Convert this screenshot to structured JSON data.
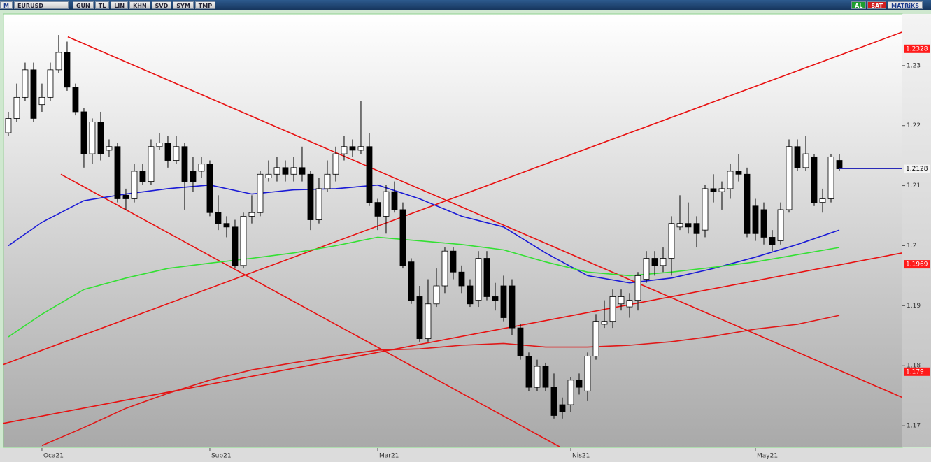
{
  "toolbar": {
    "logo": "M",
    "symbol": "EURUSD",
    "buttons": [
      "GUN",
      "TL",
      "LIN",
      "KHN",
      "SVD",
      "SYM",
      "TMP"
    ],
    "right": [
      "AL",
      "SAT",
      "MATRiKS"
    ]
  },
  "chart_data": {
    "type": "candlestick",
    "xlim": [
      -0.58,
      106.5
    ],
    "ylim": [
      1.1664,
      1.2386
    ],
    "yticks": [
      1.17,
      1.18,
      1.19,
      1.2,
      1.21,
      1.22,
      1.23
    ],
    "xticks": [
      {
        "value": 4,
        "label": "Oca21"
      },
      {
        "value": 24,
        "label": "Sub21"
      },
      {
        "value": 44,
        "label": "Mar21"
      },
      {
        "value": 67,
        "label": "Nis21"
      },
      {
        "value": 89,
        "label": "May21"
      }
    ],
    "up_color": "#ffffff",
    "down_color": "#000000",
    "open": [
      1.2188,
      1.2212,
      1.2247,
      1.2293,
      1.2235,
      1.2247,
      1.2293,
      1.2322,
      1.2264,
      1.2223,
      1.2153,
      1.2206,
      1.2159,
      1.2165,
      1.2084,
      1.2078,
      1.2124,
      1.2107,
      1.2165,
      1.2171,
      1.2142,
      1.2165,
      1.2124,
      1.2124,
      1.2136,
      1.2055,
      1.2037,
      1.2031,
      1.1967,
      1.2049,
      1.2055,
      1.2113,
      1.2119,
      1.213,
      1.2119,
      1.213,
      1.2119,
      1.2043,
      1.2095,
      1.2119,
      1.2153,
      1.2165,
      1.2159,
      1.2165,
      1.2072,
      1.2049,
      1.209,
      1.206,
      1.1973,
      1.1915,
      1.1845,
      1.1903,
      1.1933,
      1.1991,
      1.1956,
      1.1933,
      1.1909,
      1.1979,
      1.1915,
      1.1933,
      1.1933,
      1.1863,
      1.1816,
      1.1764,
      1.1799,
      1.1764,
      1.1735,
      1.1735,
      1.1776,
      1.1758,
      1.1816,
      1.1869,
      1.1874,
      1.1903,
      1.1898,
      1.1909,
      1.1944,
      1.1979,
      1.1967,
      1.1979,
      1.2031,
      1.2037,
      1.2037,
      1.2026,
      1.2095,
      1.209,
      1.2095,
      1.2124,
      1.2119,
      1.2066,
      1.206,
      1.2014,
      1.2008,
      1.206,
      1.2165,
      1.213,
      1.2148,
      1.2072,
      1.2078,
      1.2142
    ],
    "high": [
      1.2223,
      1.227,
      1.2305,
      1.2305,
      1.227,
      1.2305,
      1.2351,
      1.234,
      1.227,
      1.2229,
      1.2212,
      1.2223,
      1.2177,
      1.2171,
      1.2095,
      1.2136,
      1.2136,
      1.2177,
      1.2188,
      1.2183,
      1.2183,
      1.2171,
      1.2148,
      1.2148,
      1.2142,
      1.2084,
      1.2049,
      1.2043,
      1.2055,
      1.2084,
      1.2124,
      1.2142,
      1.2148,
      1.2142,
      1.2148,
      1.2165,
      1.2124,
      1.2113,
      1.2142,
      1.2165,
      1.2183,
      1.2177,
      1.2241,
      1.2188,
      1.2078,
      1.2101,
      1.2107,
      1.2072,
      1.1979,
      1.1933,
      1.1944,
      1.1962,
      1.1997,
      1.1997,
      1.1967,
      1.1944,
      1.1991,
      1.1991,
      1.1938,
      1.195,
      1.1944,
      1.1869,
      1.1822,
      1.181,
      1.1805,
      1.1787,
      1.1747,
      1.1781,
      1.1787,
      1.1822,
      1.1886,
      1.1909,
      1.1927,
      1.1927,
      1.1921,
      1.1956,
      1.1991,
      1.1991,
      1.1997,
      1.2049,
      1.2084,
      1.2072,
      1.2049,
      1.2101,
      1.2119,
      1.2107,
      1.2136,
      1.2153,
      1.213,
      1.2078,
      1.2072,
      1.2026,
      1.2072,
      1.2177,
      1.2177,
      1.2183,
      1.2153,
      1.2095,
      1.2153,
      1.2153
    ],
    "low": [
      1.2183,
      1.2206,
      1.2241,
      1.2206,
      1.2223,
      1.2241,
      1.2287,
      1.2258,
      1.2217,
      1.213,
      1.2136,
      1.2142,
      1.2148,
      1.2072,
      1.206,
      1.2072,
      1.2101,
      1.2101,
      1.2159,
      1.213,
      1.2136,
      1.206,
      1.209,
      1.2113,
      1.2049,
      1.2026,
      1.2014,
      1.1962,
      1.1962,
      1.2037,
      1.2049,
      1.2107,
      1.2107,
      1.2107,
      1.2107,
      1.2107,
      1.2026,
      1.2037,
      1.209,
      1.2107,
      1.2142,
      1.2148,
      1.2153,
      1.2066,
      1.2026,
      1.202,
      1.2055,
      1.1962,
      1.1903,
      1.184,
      1.184,
      1.1898,
      1.1921,
      1.1944,
      1.1921,
      1.1898,
      1.1898,
      1.1909,
      1.1892,
      1.1874,
      1.1851,
      1.181,
      1.1758,
      1.1758,
      1.1758,
      1.1712,
      1.1712,
      1.1723,
      1.1752,
      1.1741,
      1.181,
      1.1863,
      1.1863,
      1.1892,
      1.188,
      1.1892,
      1.1938,
      1.195,
      1.1956,
      1.195,
      1.2026,
      1.202,
      1.1997,
      1.2014,
      1.2072,
      1.206,
      1.2078,
      1.2107,
      1.2014,
      1.2008,
      1.2002,
      1.1991,
      1.2002,
      1.2055,
      1.2124,
      1.2124,
      1.2066,
      1.2055,
      1.2072,
      1.2124
    ],
    "close": [
      1.2212,
      1.2247,
      1.2293,
      1.2212,
      1.2247,
      1.2293,
      1.2322,
      1.2264,
      1.2223,
      1.2153,
      1.2206,
      1.2153,
      1.2165,
      1.2078,
      1.2078,
      1.2124,
      1.2107,
      1.2165,
      1.2171,
      1.2142,
      1.2165,
      1.2107,
      1.2107,
      1.2136,
      1.2055,
      1.2037,
      1.2031,
      1.1967,
      1.2049,
      1.2055,
      1.2119,
      1.2119,
      1.213,
      1.2119,
      1.213,
      1.2119,
      1.2043,
      1.2095,
      1.2119,
      1.2153,
      1.2165,
      1.2159,
      1.2165,
      1.2072,
      1.2049,
      1.209,
      1.206,
      1.1967,
      1.1909,
      1.1845,
      1.1903,
      1.1933,
      1.1991,
      1.1956,
      1.1933,
      1.1903,
      1.1979,
      1.1915,
      1.1909,
      1.188,
      1.1863,
      1.1816,
      1.1764,
      1.1799,
      1.1764,
      1.1717,
      1.1723,
      1.1776,
      1.1764,
      1.1816,
      1.1874,
      1.1874,
      1.1915,
      1.1915,
      1.1909,
      1.195,
      1.1979,
      1.1967,
      1.1979,
      1.2037,
      1.2037,
      1.2031,
      1.202,
      1.2095,
      1.209,
      1.2095,
      1.2124,
      1.2119,
      1.202,
      1.202,
      1.2014,
      1.2002,
      1.206,
      1.2165,
      1.213,
      1.2153,
      1.2072,
      1.2078,
      1.2148,
      1.2128
    ],
    "series": [
      {
        "color": "#1a1ad6",
        "x": [
          0,
          4,
          9,
          14,
          19,
          24,
          29,
          34,
          39,
          44,
          49,
          54,
          59,
          64,
          69,
          74,
          79,
          84,
          89,
          94,
          99
        ],
        "values": [
          1.2,
          1.2039,
          1.2075,
          1.2086,
          1.2095,
          1.2101,
          1.2086,
          1.2093,
          1.2095,
          1.2101,
          1.2078,
          1.2049,
          1.2031,
          1.1988,
          1.195,
          1.1938,
          1.1946,
          1.1962,
          1.1981,
          1.2002,
          1.2026
        ]
      },
      {
        "color": "#33e033",
        "x": [
          0,
          4,
          9,
          14,
          19,
          24,
          29,
          34,
          39,
          44,
          49,
          54,
          59,
          64,
          69,
          74,
          79,
          84,
          89,
          94,
          99
        ],
        "values": [
          1.1848,
          1.1886,
          1.1927,
          1.1946,
          1.1962,
          1.1971,
          1.1979,
          1.1988,
          1.2,
          1.2014,
          1.2008,
          1.2002,
          1.1993,
          1.1973,
          1.1956,
          1.195,
          1.1956,
          1.1964,
          1.1973,
          1.1985,
          1.1997
        ]
      },
      {
        "color": "#e01818",
        "x": [
          0,
          4,
          9,
          14,
          19,
          24,
          29,
          34,
          39,
          44,
          49,
          54,
          59,
          64,
          69,
          74,
          79,
          84,
          89,
          94,
          99
        ],
        "values": [
          null,
          1.1667,
          1.1697,
          1.1729,
          1.1754,
          1.1776,
          1.1793,
          1.1805,
          1.1816,
          1.1826,
          1.1828,
          1.1834,
          1.1837,
          1.1831,
          1.1831,
          1.1834,
          1.184,
          1.1849,
          1.1861,
          1.1869,
          1.1884
        ]
      }
    ],
    "trendlines": [
      {
        "color": "#e81010",
        "x": [
          7.08,
          106.5
        ],
        "values": [
          1.2348,
          1.1747
        ]
      },
      {
        "color": "#e81010",
        "x": [
          6.25,
          65.67
        ],
        "values": [
          1.2119,
          1.1665
        ]
      },
      {
        "color": "#e81010",
        "x": [
          -0.58,
          106.5
        ],
        "values": [
          1.1802,
          1.2356
        ]
      },
      {
        "color": "#e81010",
        "x": [
          -0.58,
          106.5
        ],
        "values": [
          1.1704,
          1.1988
        ]
      }
    ],
    "last_price": 1.2128,
    "last_price_color": "#2a2ab8",
    "price_markers": [
      1.2328,
      1.1969,
      1.179
    ],
    "price_marker_color": "#ff1a1a"
  }
}
